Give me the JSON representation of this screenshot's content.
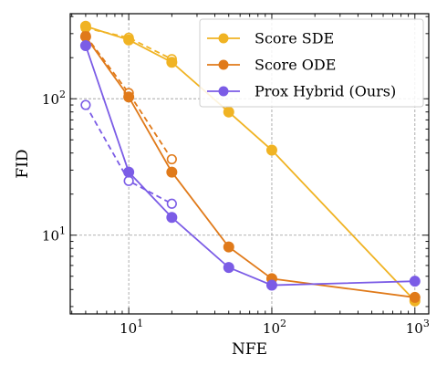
{
  "chart_data": {
    "type": "line",
    "xlabel": "NFE",
    "ylabel": "FID",
    "xscale": "log",
    "yscale": "log",
    "xlim": [
      3.9,
      1250
    ],
    "ylim": [
      2.65,
      420
    ],
    "grid": true,
    "legend_position": "top-right",
    "x_ticks": [
      {
        "value": 10,
        "base": "10",
        "exp": "1"
      },
      {
        "value": 100,
        "base": "10",
        "exp": "2"
      },
      {
        "value": 1000,
        "base": "10",
        "exp": "3"
      }
    ],
    "y_ticks": [
      {
        "value": 10,
        "base": "10",
        "exp": "1"
      },
      {
        "value": 100,
        "base": "10",
        "exp": "2"
      }
    ],
    "series": [
      {
        "name": "Score SDE",
        "color": "#F0B323",
        "marker": "filled-circle",
        "line": "solid",
        "x": [
          5,
          10,
          20,
          50,
          100,
          1000
        ],
        "y": [
          340,
          270,
          185,
          80,
          42,
          3.3
        ]
      },
      {
        "name": "Score ODE",
        "color": "#E07A1A",
        "marker": "filled-circle",
        "line": "solid",
        "x": [
          5,
          10,
          20,
          50,
          100,
          1000
        ],
        "y": [
          285,
          103,
          29,
          8.2,
          4.8,
          3.5
        ]
      },
      {
        "name": "Prox Hybrid (Ours)",
        "color": "#7B5CE6",
        "marker": "filled-circle",
        "line": "solid",
        "x": [
          5,
          10,
          20,
          50,
          100,
          1000
        ],
        "y": [
          245,
          29,
          13.5,
          5.8,
          4.3,
          4.6
        ]
      }
    ],
    "dashed_series": [
      {
        "color": "#F0B323",
        "marker": "hollow-circle",
        "line": "dashed",
        "x": [
          5,
          10,
          20
        ],
        "y": [
          330,
          280,
          195
        ]
      },
      {
        "color": "#E07A1A",
        "marker": "hollow-circle",
        "line": "dashed",
        "x": [
          5,
          10,
          20
        ],
        "y": [
          290,
          110,
          36
        ]
      },
      {
        "color": "#7B5CE6",
        "marker": "hollow-circle",
        "line": "dashed",
        "x": [
          5,
          10,
          20
        ],
        "y": [
          90,
          25,
          17
        ]
      }
    ]
  }
}
